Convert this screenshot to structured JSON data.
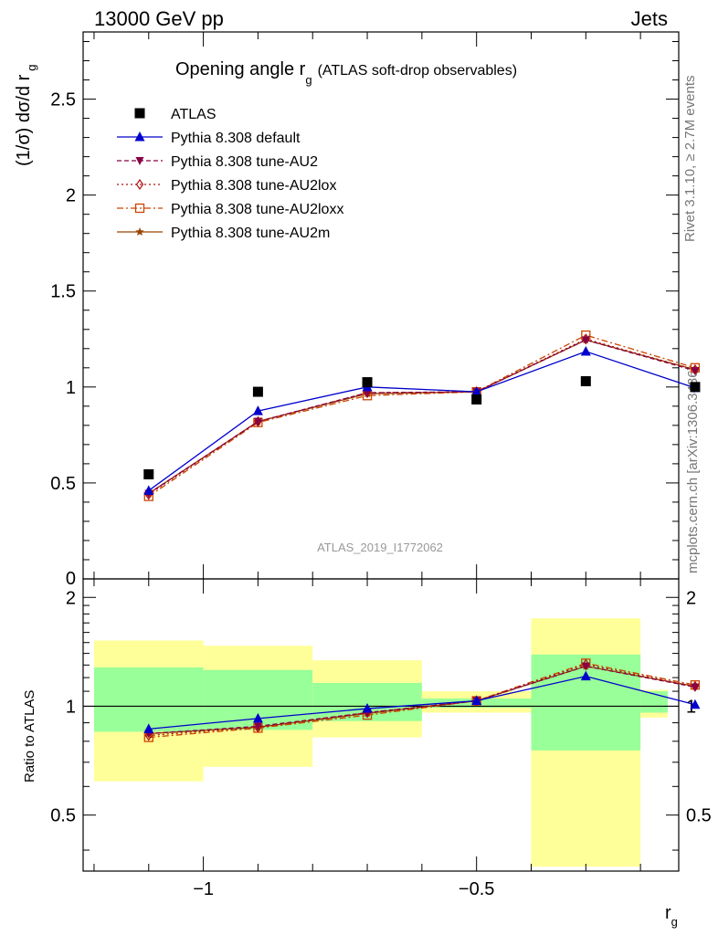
{
  "header": {
    "left": "13000 GeV pp",
    "right": "Jets"
  },
  "side_labels": {
    "rivet": "Rivet 3.1.10, ≥ 2.7M events",
    "mcplots": "mcplots.cern.ch [arXiv:1306.3436]"
  },
  "chart_data": [
    {
      "type": "scatter",
      "panel": "main",
      "title_main": "Opening angle r",
      "title_sub": "g",
      "title_rest": "(ATLAS soft-drop observables)",
      "ylabel": "(1/σ) dσ/d r",
      "ylabel_sub": "g",
      "ylim": [
        0,
        2.85
      ],
      "yticks": [
        0.5,
        1,
        1.5,
        2,
        2.5
      ],
      "ytick_labels": [
        "0.5",
        "1",
        "1.5",
        "2",
        "2.5"
      ],
      "y_zero_label": "0",
      "xlim": [
        -1.22,
        -0.13
      ],
      "x": [
        -1.1,
        -0.9,
        -0.7,
        -0.5,
        -0.3,
        -0.1
      ],
      "analysis_label": "ATLAS_2019_I1772062",
      "legend_position": "top-left",
      "series": [
        {
          "name": "ATLAS",
          "color": "#000000",
          "marker": "square",
          "dash": "",
          "values": [
            0.545,
            0.975,
            1.025,
            0.935,
            1.03,
            1.0
          ]
        },
        {
          "name": "Pythia 8.308 default",
          "color": "#0000cc",
          "marker": "triangle",
          "dash": "",
          "values": [
            0.46,
            0.875,
            1.0,
            0.975,
            1.185,
            0.995
          ]
        },
        {
          "name": "Pythia 8.308 tune-AU2",
          "color": "#880044",
          "marker": "triangle-down",
          "dash": "5,3",
          "values": [
            0.445,
            0.82,
            0.97,
            0.975,
            1.245,
            1.085
          ]
        },
        {
          "name": "Pythia 8.308 tune-AU2lox",
          "color": "#aa1111",
          "marker": "diamond-open",
          "dash": "2,3",
          "values": [
            0.44,
            0.82,
            0.97,
            0.975,
            1.25,
            1.09
          ]
        },
        {
          "name": "Pythia 8.308 tune-AU2loxx",
          "color": "#cc4400",
          "marker": "square-open",
          "dash": "7,3,2,3",
          "values": [
            0.43,
            0.815,
            0.955,
            0.975,
            1.27,
            1.1
          ]
        },
        {
          "name": "Pythia 8.308 tune-AU2m",
          "color": "#994400",
          "marker": "star",
          "dash": "",
          "values": [
            0.445,
            0.82,
            0.965,
            0.975,
            1.245,
            1.09
          ]
        }
      ]
    },
    {
      "type": "scatter",
      "panel": "ratio",
      "ylabel": "Ratio to ATLAS",
      "xlabel": "r",
      "xlabel_sub": "g",
      "ylim": [
        0.35,
        2.25
      ],
      "yticks": [
        0.5,
        1,
        2
      ],
      "ytick_labels": [
        "0.5",
        "1",
        "2"
      ],
      "xlim": [
        -1.22,
        -0.13
      ],
      "xticks": [
        -1,
        -0.5
      ],
      "xtick_labels": [
        "−1",
        "−0.5"
      ],
      "bins": [
        [
          -1.2,
          -1.0
        ],
        [
          -1.0,
          -0.8
        ],
        [
          -0.8,
          -0.6
        ],
        [
          -0.6,
          -0.4
        ],
        [
          -0.4,
          -0.2
        ],
        [
          -0.2,
          -0.15
        ]
      ],
      "band_inner": [
        [
          0.85,
          1.28
        ],
        [
          0.86,
          1.26
        ],
        [
          0.91,
          1.16
        ],
        [
          0.99,
          1.05
        ],
        [
          0.755,
          1.39
        ],
        [
          0.96,
          1.1
        ]
      ],
      "band_outer": [
        [
          0.62,
          1.52
        ],
        [
          0.68,
          1.47
        ],
        [
          0.82,
          1.34
        ],
        [
          0.96,
          1.1
        ],
        [
          0.36,
          1.75
        ],
        [
          0.93,
          1.11
        ]
      ],
      "band_colors": {
        "inner": "#99ff99",
        "outer": "#ffff99"
      },
      "x": [
        -1.1,
        -0.9,
        -0.7,
        -0.5,
        -0.3,
        -0.1
      ],
      "series": [
        {
          "name": "Pythia 8.308 default",
          "color": "#0000cc",
          "marker": "triangle",
          "dash": "",
          "values": [
            0.865,
            0.925,
            0.985,
            1.035,
            1.21,
            1.01
          ]
        },
        {
          "name": "Pythia 8.308 tune-AU2",
          "color": "#880044",
          "marker": "triangle-down",
          "dash": "5,3",
          "values": [
            0.84,
            0.88,
            0.96,
            1.035,
            1.29,
            1.13
          ]
        },
        {
          "name": "Pythia 8.308 tune-AU2lox",
          "color": "#aa1111",
          "marker": "diamond-open",
          "dash": "2,3",
          "values": [
            0.83,
            0.875,
            0.96,
            1.035,
            1.305,
            1.135
          ]
        },
        {
          "name": "Pythia 8.308 tune-AU2loxx",
          "color": "#cc4400",
          "marker": "square-open",
          "dash": "7,3,2,3",
          "values": [
            0.82,
            0.87,
            0.945,
            1.035,
            1.315,
            1.145
          ]
        },
        {
          "name": "Pythia 8.308 tune-AU2m",
          "color": "#994400",
          "marker": "star",
          "dash": "",
          "values": [
            0.84,
            0.875,
            0.955,
            1.035,
            1.29,
            1.135
          ]
        }
      ]
    }
  ]
}
